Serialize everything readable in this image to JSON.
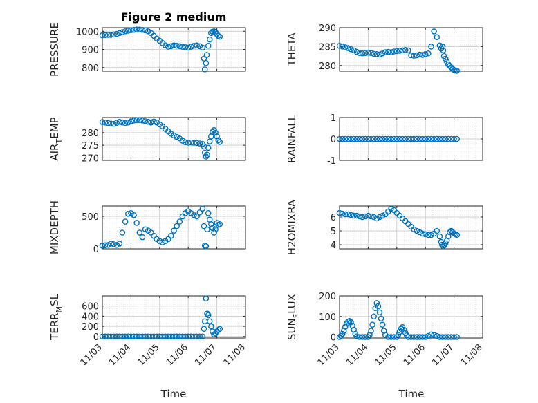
{
  "figure": {
    "title": "Figure 2 medium",
    "xlabel": "Time",
    "marker_color": "#0072BD",
    "x_tick_labels": [
      "11/03",
      "11/04",
      "11/05",
      "11/06",
      "11/07",
      "11/08"
    ]
  },
  "chart_data": [
    {
      "type": "scatter",
      "ylabel": "PRESSURE",
      "ylim": [
        780,
        1020
      ],
      "yticks": [
        800,
        900,
        1000
      ],
      "ytick_labels": [
        "800",
        "900",
        "1000"
      ],
      "grid": true,
      "xlim": [
        0,
        5
      ],
      "x": [
        0,
        0.1,
        0.2,
        0.3,
        0.4,
        0.5,
        0.6,
        0.7,
        0.8,
        0.9,
        1.0,
        1.1,
        1.2,
        1.3,
        1.4,
        1.5,
        1.6,
        1.7,
        1.8,
        1.9,
        2.0,
        2.1,
        2.2,
        2.3,
        2.4,
        2.5,
        2.6,
        2.7,
        2.8,
        2.9,
        3.0,
        3.1,
        3.2,
        3.3,
        3.4,
        3.5,
        3.55,
        3.58,
        3.62,
        3.65,
        3.7,
        3.75,
        3.8,
        3.85,
        3.9,
        3.95,
        4.0,
        4.05,
        4.1
      ],
      "y": [
        978,
        979,
        980,
        980,
        982,
        985,
        990,
        995,
        1000,
        1003,
        1006,
        1008,
        1010,
        1010,
        1008,
        1005,
        1000,
        990,
        975,
        960,
        948,
        935,
        922,
        915,
        918,
        922,
        920,
        918,
        915,
        912,
        910,
        915,
        920,
        922,
        918,
        910,
        850,
        790,
        825,
        870,
        920,
        955,
        990,
        998,
        1000,
        995,
        985,
        975,
        970
      ]
    },
    {
      "type": "scatter",
      "ylabel": "THETA",
      "ylim": [
        278.5,
        290
      ],
      "yticks": [
        280,
        285,
        290
      ],
      "ytick_labels": [
        "280",
        "285",
        "290"
      ],
      "grid": true,
      "xlim": [
        0,
        5
      ],
      "x": [
        0,
        0.1,
        0.2,
        0.3,
        0.4,
        0.5,
        0.6,
        0.7,
        0.8,
        0.9,
        1.0,
        1.1,
        1.2,
        1.3,
        1.4,
        1.5,
        1.6,
        1.7,
        1.8,
        1.9,
        2.0,
        2.1,
        2.2,
        2.3,
        2.4,
        2.5,
        2.6,
        2.7,
        2.8,
        2.9,
        3.0,
        3.1,
        3.2,
        3.3,
        3.4,
        3.5,
        3.55,
        3.6,
        3.62,
        3.65,
        3.7,
        3.75,
        3.8,
        3.85,
        3.9,
        3.95,
        4.0,
        4.05,
        4.1
      ],
      "y": [
        285.2,
        285.0,
        284.8,
        284.6,
        284.3,
        284.0,
        283.6,
        283.3,
        283.2,
        283.3,
        283.4,
        283.3,
        283.1,
        283.0,
        282.9,
        283.2,
        283.5,
        283.6,
        283.5,
        283.7,
        283.8,
        283.9,
        284.0,
        284.1,
        284.0,
        282.7,
        282.6,
        282.7,
        282.9,
        282.8,
        283.0,
        283.2,
        285.0,
        289.0,
        287.5,
        285.3,
        284.5,
        285.0,
        284.0,
        282.5,
        281.8,
        281.0,
        280.3,
        279.9,
        279.5,
        279.1,
        278.8,
        278.7,
        278.6
      ]
    },
    {
      "type": "scatter",
      "ylabel": "AIR_TEMP",
      "ylim": [
        269,
        286
      ],
      "yticks": [
        270,
        275,
        280
      ],
      "ytick_labels": [
        "270",
        "275",
        "280"
      ],
      "grid": true,
      "xlim": [
        0,
        5
      ],
      "x": [
        0,
        0.1,
        0.2,
        0.3,
        0.4,
        0.5,
        0.6,
        0.7,
        0.8,
        0.9,
        1.0,
        1.1,
        1.2,
        1.3,
        1.4,
        1.5,
        1.6,
        1.7,
        1.8,
        1.9,
        2.0,
        2.1,
        2.2,
        2.3,
        2.4,
        2.5,
        2.6,
        2.7,
        2.8,
        2.9,
        3.0,
        3.1,
        3.2,
        3.3,
        3.4,
        3.5,
        3.55,
        3.58,
        3.62,
        3.66,
        3.7,
        3.75,
        3.8,
        3.85,
        3.9,
        3.95,
        4.0,
        4.05,
        4.1
      ],
      "y": [
        284.2,
        284.0,
        283.8,
        283.6,
        283.5,
        283.9,
        284.3,
        284.0,
        283.8,
        284.0,
        284.5,
        284.8,
        285.0,
        285.0,
        284.8,
        284.5,
        284.3,
        284.0,
        284.4,
        284.0,
        283.3,
        282.5,
        281.5,
        280.5,
        279.6,
        278.9,
        278.3,
        277.7,
        276.8,
        276.2,
        276.0,
        276.1,
        276.0,
        275.9,
        275.7,
        275.5,
        274.5,
        272.0,
        270.5,
        271.2,
        274.0,
        276.5,
        278.5,
        280.3,
        281.0,
        280.0,
        278.5,
        277.0,
        276.3
      ]
    },
    {
      "type": "scatter",
      "ylabel": "RAINFALL",
      "ylim": [
        -1,
        1
      ],
      "yticks": [
        -1,
        0,
        1
      ],
      "ytick_labels": [
        "-1",
        "0",
        "1"
      ],
      "grid": true,
      "xlim": [
        0,
        5
      ],
      "x": [
        0,
        0.1,
        0.2,
        0.3,
        0.4,
        0.5,
        0.6,
        0.7,
        0.8,
        0.9,
        1.0,
        1.1,
        1.2,
        1.3,
        1.4,
        1.5,
        1.6,
        1.7,
        1.8,
        1.9,
        2.0,
        2.1,
        2.2,
        2.3,
        2.4,
        2.5,
        2.6,
        2.7,
        2.8,
        2.9,
        3.0,
        3.1,
        3.2,
        3.3,
        3.4,
        3.5,
        3.6,
        3.7,
        3.8,
        3.9,
        4.0,
        4.1
      ],
      "y": [
        0,
        0,
        0,
        0,
        0,
        0,
        0,
        0,
        0,
        0,
        0,
        0,
        0,
        0,
        0,
        0,
        0,
        0,
        0,
        0,
        0,
        0,
        0,
        0,
        0,
        0,
        0,
        0,
        0,
        0,
        0,
        0,
        0,
        0,
        0,
        0,
        0,
        0,
        0,
        0,
        0,
        0
      ]
    },
    {
      "type": "scatter",
      "ylabel": "MIXDEPTH",
      "ylim": [
        0,
        660
      ],
      "yticks": [
        0,
        500
      ],
      "ytick_labels": [
        "0",
        "500"
      ],
      "grid": true,
      "xlim": [
        0,
        5
      ],
      "x": [
        0,
        0.1,
        0.2,
        0.3,
        0.4,
        0.5,
        0.6,
        0.7,
        0.8,
        0.9,
        1.0,
        1.1,
        1.2,
        1.3,
        1.4,
        1.5,
        1.6,
        1.7,
        1.8,
        1.9,
        2.0,
        2.1,
        2.2,
        2.3,
        2.4,
        2.5,
        2.6,
        2.7,
        2.8,
        2.9,
        3.0,
        3.1,
        3.2,
        3.3,
        3.4,
        3.5,
        3.55,
        3.58,
        3.62,
        3.66,
        3.7,
        3.75,
        3.8,
        3.85,
        3.9,
        3.95,
        4.0,
        4.05,
        4.1
      ],
      "y": [
        50,
        55,
        60,
        80,
        70,
        60,
        80,
        250,
        420,
        540,
        550,
        520,
        400,
        250,
        180,
        300,
        280,
        250,
        200,
        150,
        120,
        100,
        120,
        150,
        200,
        280,
        350,
        420,
        500,
        550,
        580,
        550,
        520,
        500,
        560,
        620,
        350,
        50,
        40,
        300,
        550,
        450,
        380,
        320,
        250,
        300,
        400,
        370,
        380
      ]
    },
    {
      "type": "scatter",
      "ylabel": "H2OMIXRA",
      "ylim": [
        3.7,
        6.8
      ],
      "yticks": [
        4,
        5,
        6
      ],
      "ytick_labels": [
        "4",
        "5",
        "6"
      ],
      "grid": true,
      "xlim": [
        0,
        5
      ],
      "x": [
        0,
        0.1,
        0.2,
        0.3,
        0.4,
        0.5,
        0.6,
        0.7,
        0.8,
        0.9,
        1.0,
        1.1,
        1.2,
        1.3,
        1.4,
        1.5,
        1.6,
        1.7,
        1.8,
        1.9,
        2.0,
        2.1,
        2.2,
        2.3,
        2.4,
        2.5,
        2.6,
        2.7,
        2.8,
        2.9,
        3.0,
        3.1,
        3.2,
        3.3,
        3.4,
        3.5,
        3.55,
        3.58,
        3.62,
        3.66,
        3.7,
        3.75,
        3.8,
        3.85,
        3.9,
        3.95,
        4.0,
        4.05,
        4.1
      ],
      "y": [
        6.3,
        6.25,
        6.2,
        6.2,
        6.15,
        6.1,
        6.1,
        6.05,
        6.0,
        6.05,
        6.1,
        6.05,
        6.0,
        5.9,
        6.0,
        6.1,
        6.2,
        6.4,
        6.6,
        6.5,
        6.3,
        6.1,
        5.9,
        5.7,
        5.5,
        5.3,
        5.1,
        5.0,
        4.9,
        4.8,
        4.75,
        4.7,
        4.7,
        4.8,
        5.0,
        4.6,
        4.2,
        4.0,
        3.9,
        3.95,
        4.1,
        4.3,
        4.6,
        4.9,
        5.0,
        4.9,
        4.8,
        4.75,
        4.7
      ]
    },
    {
      "type": "scatter",
      "ylabel": "TERR_MSL",
      "ylim": [
        -30,
        800
      ],
      "yticks": [
        0,
        200,
        400,
        600
      ],
      "ytick_labels": [
        "0",
        "200",
        "400",
        "600"
      ],
      "grid": true,
      "xlim": [
        0,
        5
      ],
      "x": [
        0,
        0.1,
        0.2,
        0.3,
        0.4,
        0.5,
        0.6,
        0.7,
        0.8,
        0.9,
        1.0,
        1.1,
        1.2,
        1.3,
        1.4,
        1.5,
        1.6,
        1.7,
        1.8,
        1.9,
        2.0,
        2.1,
        2.2,
        2.3,
        2.4,
        2.5,
        2.6,
        2.7,
        2.8,
        2.9,
        3.0,
        3.1,
        3.2,
        3.3,
        3.4,
        3.5,
        3.55,
        3.58,
        3.62,
        3.66,
        3.7,
        3.75,
        3.8,
        3.85,
        3.9,
        3.95,
        4.0,
        4.05,
        4.1
      ],
      "y": [
        0,
        0,
        0,
        0,
        0,
        0,
        0,
        0,
        0,
        0,
        0,
        0,
        0,
        0,
        0,
        0,
        0,
        0,
        0,
        0,
        0,
        0,
        0,
        0,
        0,
        0,
        0,
        0,
        0,
        0,
        0,
        0,
        0,
        0,
        0,
        0,
        150,
        300,
        750,
        450,
        420,
        300,
        200,
        100,
        40,
        60,
        100,
        130,
        150
      ]
    },
    {
      "type": "scatter",
      "ylabel": "SUN_FLUX",
      "ylim": [
        -5,
        200
      ],
      "yticks": [
        0,
        100,
        200
      ],
      "ytick_labels": [
        "0",
        "100",
        "200"
      ],
      "grid": true,
      "xlim": [
        0,
        5
      ],
      "x": [
        0,
        0.05,
        0.1,
        0.15,
        0.2,
        0.25,
        0.3,
        0.35,
        0.4,
        0.45,
        0.5,
        0.55,
        0.6,
        0.7,
        0.8,
        0.9,
        1.0,
        1.05,
        1.1,
        1.15,
        1.2,
        1.25,
        1.3,
        1.35,
        1.4,
        1.45,
        1.5,
        1.55,
        1.6,
        1.7,
        1.8,
        1.9,
        2.0,
        2.05,
        2.1,
        2.15,
        2.2,
        2.25,
        2.3,
        2.35,
        2.4,
        2.5,
        2.6,
        2.7,
        2.8,
        2.9,
        3.0,
        3.1,
        3.2,
        3.3,
        3.4,
        3.5,
        3.6,
        3.7,
        3.8,
        3.9,
        4.0,
        4.1
      ],
      "y": [
        0,
        5,
        15,
        30,
        50,
        65,
        75,
        78,
        72,
        55,
        35,
        15,
        3,
        0,
        0,
        0,
        0,
        10,
        30,
        60,
        100,
        140,
        165,
        150,
        120,
        90,
        60,
        30,
        10,
        0,
        0,
        0,
        0,
        10,
        25,
        40,
        48,
        35,
        20,
        8,
        0,
        0,
        0,
        0,
        0,
        0,
        0,
        5,
        12,
        10,
        5,
        0,
        0,
        0,
        0,
        0,
        0,
        0
      ]
    }
  ]
}
